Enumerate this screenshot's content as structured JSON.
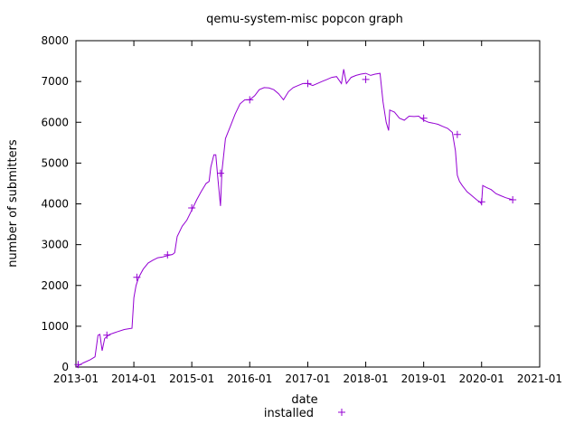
{
  "chart_data": {
    "type": "line",
    "title": "qemu-system-misc popcon graph",
    "xlabel": "date",
    "ylabel": "number of submitters",
    "x_ticks": [
      "2013-01",
      "2014-01",
      "2015-01",
      "2016-01",
      "2017-01",
      "2018-01",
      "2019-01",
      "2020-01",
      "2021-01"
    ],
    "y_ticks": [
      0,
      1000,
      2000,
      3000,
      4000,
      5000,
      6000,
      7000,
      8000
    ],
    "xlim": [
      "2013-01-01",
      "2021-01-01"
    ],
    "ylim": [
      0,
      8000
    ],
    "grid": false,
    "legend": "bottom-center",
    "series": [
      {
        "name": "installed",
        "color": "#9400d3",
        "marker": "plus",
        "points": [
          [
            "2013-01-01",
            0
          ],
          [
            "2013-02-15",
            100
          ],
          [
            "2013-04-01",
            180
          ],
          [
            "2013-05-01",
            250
          ],
          [
            "2013-05-20",
            780
          ],
          [
            "2013-06-01",
            800
          ],
          [
            "2013-06-15",
            400
          ],
          [
            "2013-07-01",
            700
          ],
          [
            "2013-08-01",
            800
          ],
          [
            "2013-09-15",
            860
          ],
          [
            "2013-11-01",
            920
          ],
          [
            "2013-12-01",
            940
          ],
          [
            "2013-12-20",
            950
          ],
          [
            "2014-01-01",
            1700
          ],
          [
            "2014-01-15",
            2000
          ],
          [
            "2014-02-01",
            2200
          ],
          [
            "2014-03-01",
            2400
          ],
          [
            "2014-04-01",
            2550
          ],
          [
            "2014-05-01",
            2620
          ],
          [
            "2014-06-01",
            2680
          ],
          [
            "2014-07-01",
            2700
          ],
          [
            "2014-08-01",
            2730
          ],
          [
            "2014-09-01",
            2760
          ],
          [
            "2014-09-15",
            2800
          ],
          [
            "2014-10-01",
            3200
          ],
          [
            "2014-11-01",
            3450
          ],
          [
            "2014-12-01",
            3600
          ],
          [
            "2015-01-01",
            3850
          ],
          [
            "2015-02-01",
            4100
          ],
          [
            "2015-03-01",
            4300
          ],
          [
            "2015-04-01",
            4500
          ],
          [
            "2015-04-20",
            4550
          ],
          [
            "2015-05-01",
            4900
          ],
          [
            "2015-05-20",
            5200
          ],
          [
            "2015-06-01",
            5200
          ],
          [
            "2015-06-15",
            4600
          ],
          [
            "2015-07-01",
            3950
          ],
          [
            "2015-07-10",
            4800
          ],
          [
            "2015-08-01",
            5600
          ],
          [
            "2015-09-01",
            5900
          ],
          [
            "2015-10-01",
            6200
          ],
          [
            "2015-11-01",
            6450
          ],
          [
            "2015-12-01",
            6550
          ],
          [
            "2016-01-01",
            6550
          ],
          [
            "2016-02-01",
            6650
          ],
          [
            "2016-03-01",
            6800
          ],
          [
            "2016-04-01",
            6850
          ],
          [
            "2016-05-01",
            6840
          ],
          [
            "2016-06-01",
            6800
          ],
          [
            "2016-07-01",
            6700
          ],
          [
            "2016-08-01",
            6550
          ],
          [
            "2016-09-01",
            6750
          ],
          [
            "2016-10-01",
            6850
          ],
          [
            "2016-11-01",
            6900
          ],
          [
            "2016-12-01",
            6950
          ],
          [
            "2017-01-01",
            6950
          ],
          [
            "2017-02-01",
            6900
          ],
          [
            "2017-03-01",
            6950
          ],
          [
            "2017-04-01",
            7000
          ],
          [
            "2017-05-01",
            7050
          ],
          [
            "2017-06-01",
            7100
          ],
          [
            "2017-07-01",
            7120
          ],
          [
            "2017-08-01",
            6950
          ],
          [
            "2017-08-15",
            7300
          ],
          [
            "2017-09-01",
            6950
          ],
          [
            "2017-10-01",
            7100
          ],
          [
            "2017-11-01",
            7150
          ],
          [
            "2017-12-01",
            7180
          ],
          [
            "2018-01-01",
            7200
          ],
          [
            "2018-02-01",
            7150
          ],
          [
            "2018-03-01",
            7180
          ],
          [
            "2018-04-01",
            7200
          ],
          [
            "2018-04-20",
            6500
          ],
          [
            "2018-05-10",
            6000
          ],
          [
            "2018-05-25",
            5800
          ],
          [
            "2018-06-01",
            6300
          ],
          [
            "2018-07-01",
            6250
          ],
          [
            "2018-08-01",
            6100
          ],
          [
            "2018-09-01",
            6050
          ],
          [
            "2018-10-01",
            6150
          ],
          [
            "2018-11-01",
            6140
          ],
          [
            "2018-12-01",
            6150
          ],
          [
            "2019-01-01",
            6050
          ],
          [
            "2019-02-01",
            6000
          ],
          [
            "2019-03-01",
            5980
          ],
          [
            "2019-04-01",
            5950
          ],
          [
            "2019-05-01",
            5900
          ],
          [
            "2019-06-01",
            5850
          ],
          [
            "2019-07-01",
            5750
          ],
          [
            "2019-07-20",
            5300
          ],
          [
            "2019-08-01",
            4700
          ],
          [
            "2019-08-15",
            4550
          ],
          [
            "2019-09-01",
            4450
          ],
          [
            "2019-10-01",
            4300
          ],
          [
            "2019-11-01",
            4200
          ],
          [
            "2019-12-01",
            4100
          ],
          [
            "2019-12-20",
            4050
          ],
          [
            "2020-01-01",
            4000
          ],
          [
            "2020-01-08",
            4450
          ],
          [
            "2020-02-01",
            4400
          ],
          [
            "2020-03-01",
            4350
          ],
          [
            "2020-04-01",
            4250
          ],
          [
            "2020-05-01",
            4200
          ],
          [
            "2020-06-01",
            4150
          ],
          [
            "2020-07-15",
            4100
          ]
        ],
        "markers": [
          [
            "2013-01-15",
            60
          ],
          [
            "2013-07-15",
            780
          ],
          [
            "2014-01-20",
            2200
          ],
          [
            "2014-08-01",
            2750
          ],
          [
            "2015-01-01",
            3900
          ],
          [
            "2015-07-01",
            4750
          ],
          [
            "2016-01-01",
            6550
          ],
          [
            "2017-01-01",
            6950
          ],
          [
            "2018-01-01",
            7050
          ],
          [
            "2019-01-01",
            6100
          ],
          [
            "2019-08-01",
            5700
          ],
          [
            "2020-01-01",
            4050
          ],
          [
            "2020-07-15",
            4100
          ]
        ]
      }
    ]
  }
}
